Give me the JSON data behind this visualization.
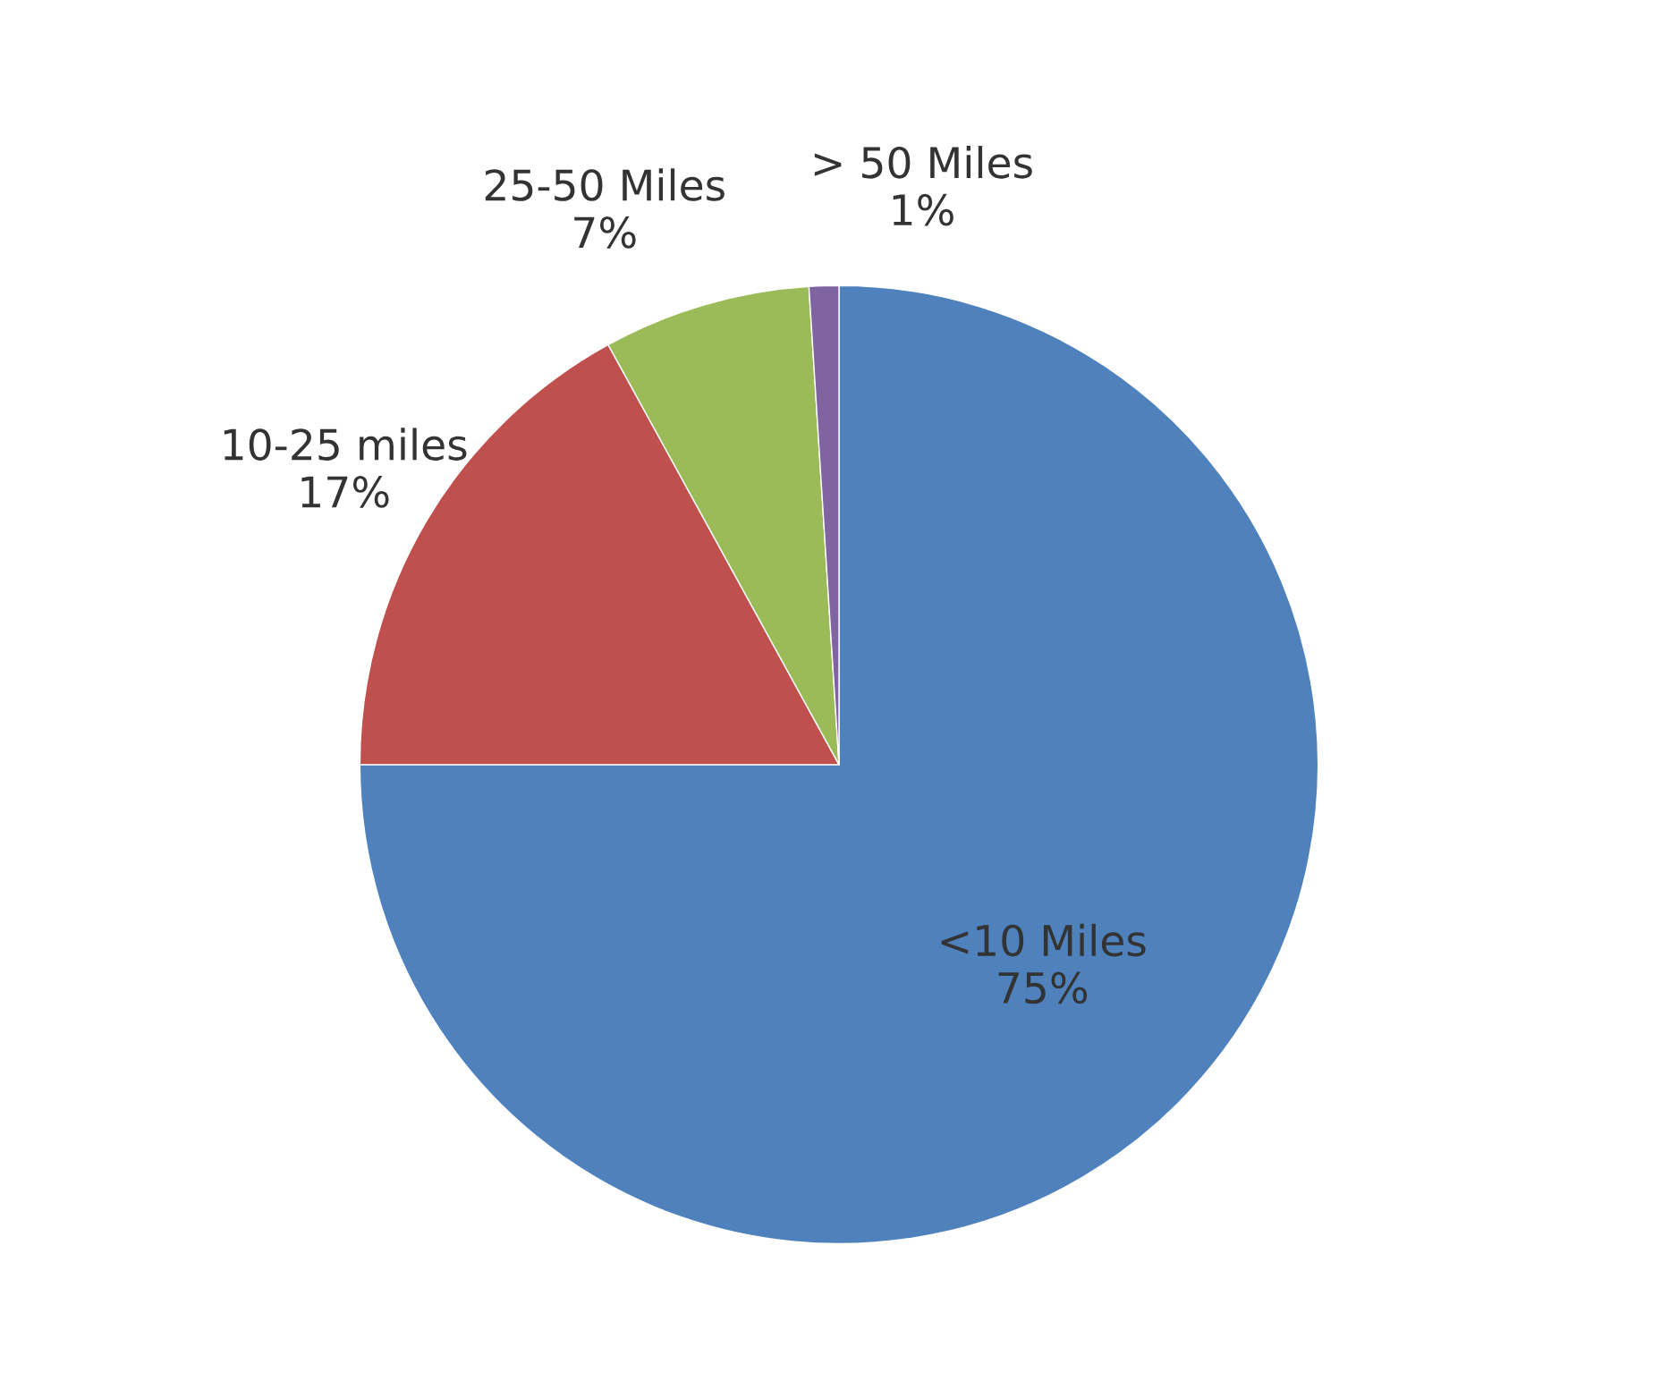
{
  "chart_data": {
    "type": "pie",
    "categories": [
      "<10 Miles",
      "10-25 miles",
      "25-50 Miles",
      "> 50 Miles"
    ],
    "values": [
      75,
      17,
      7,
      1
    ],
    "value_labels": [
      "75%",
      "17%",
      "7%",
      "1%"
    ],
    "colors": [
      "#4f81bd",
      "#c0504d",
      "#9bbb59",
      "#8064a2"
    ],
    "legend": false
  }
}
